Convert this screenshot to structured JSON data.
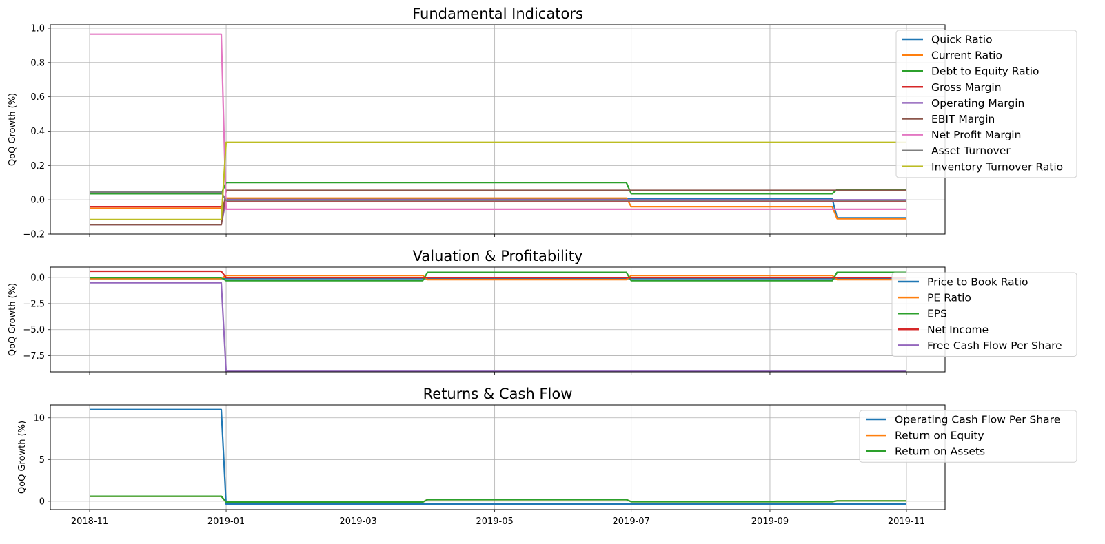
{
  "chart_data": [
    {
      "type": "line",
      "title": "Fundamental Indicators",
      "ylabel": "QoQ Growth (%)",
      "xlabel": "",
      "ylim": [
        -0.2,
        1.02
      ],
      "yticks": [
        -0.2,
        0.0,
        0.2,
        0.4,
        0.6,
        0.8,
        1.0
      ],
      "yticklabels": [
        "−0.2",
        "0.0",
        "0.2",
        "0.4",
        "0.6",
        "0.8",
        "1.0"
      ],
      "legend": "top-right",
      "series": [
        {
          "name": "Quick Ratio",
          "color": "#1f77b4",
          "values": [
            -0.05,
            0.005,
            0.005,
            0.005,
            -0.105,
            -0.105
          ]
        },
        {
          "name": "Current Ratio",
          "color": "#ff7f0e",
          "values": [
            -0.05,
            0.01,
            0.01,
            -0.04,
            -0.11,
            -0.11
          ]
        },
        {
          "name": "Debt to Equity Ratio",
          "color": "#2ca02c",
          "values": [
            0.035,
            0.1,
            0.1,
            0.035,
            0.06,
            0.06
          ]
        },
        {
          "name": "Gross Margin",
          "color": "#d62728",
          "values": [
            -0.04,
            -0.01,
            -0.01,
            -0.01,
            -0.01,
            -0.01
          ]
        },
        {
          "name": "Operating Margin",
          "color": "#9467bd",
          "values": [
            -0.145,
            0.0,
            0.0,
            0.0,
            0.0,
            0.0
          ]
        },
        {
          "name": "EBIT Margin",
          "color": "#8c564b",
          "values": [
            -0.145,
            0.055,
            0.055,
            0.055,
            0.055,
            0.055
          ]
        },
        {
          "name": "Net Profit Margin",
          "color": "#e377c2",
          "values": [
            0.965,
            -0.055,
            -0.055,
            -0.055,
            -0.055,
            -0.055
          ]
        },
        {
          "name": "Asset Turnover",
          "color": "#7f7f7f",
          "values": [
            0.045,
            -0.005,
            -0.005,
            -0.005,
            -0.005,
            -0.005
          ]
        },
        {
          "name": "Inventory Turnover Ratio",
          "color": "#bcbd22",
          "values": [
            -0.115,
            0.335,
            0.335,
            0.335,
            0.335,
            0.335
          ]
        }
      ]
    },
    {
      "type": "line",
      "title": "Valuation & Profitability",
      "ylabel": "QoQ Growth (%)",
      "xlabel": "",
      "ylim": [
        -9.05,
        1.0
      ],
      "yticks": [
        0.0,
        -2.5,
        -5.0,
        -7.5
      ],
      "yticklabels": [
        "0.0",
        "−2.5",
        "−5.0",
        "−7.5"
      ],
      "legend": "right",
      "series": [
        {
          "name": "Price to Book Ratio",
          "color": "#1f77b4",
          "values": [
            -0.1,
            -0.1,
            -0.1,
            -0.1,
            -0.1,
            -0.1
          ]
        },
        {
          "name": "PE Ratio",
          "color": "#ff7f0e",
          "values": [
            -0.1,
            0.2,
            -0.2,
            0.2,
            -0.2,
            -0.2
          ]
        },
        {
          "name": "EPS",
          "color": "#2ca02c",
          "values": [
            0.0,
            -0.3,
            0.5,
            -0.3,
            0.5,
            0.5
          ]
        },
        {
          "name": "Net Income",
          "color": "#d62728",
          "values": [
            0.6,
            0.0,
            0.0,
            0.0,
            0.0,
            0.0
          ]
        },
        {
          "name": "Free Cash Flow Per Share",
          "color": "#9467bd",
          "values": [
            -0.5,
            -9.0,
            -9.0,
            -9.0,
            -9.0,
            -9.0
          ]
        }
      ]
    },
    {
      "type": "line",
      "title": "Returns & Cash Flow",
      "ylabel": "QoQ Growth (%)",
      "xlabel": "",
      "ylim": [
        -1.0,
        11.55
      ],
      "yticks": [
        0,
        5,
        10
      ],
      "yticklabels": [
        "0",
        "5",
        "10"
      ],
      "legend": "top-right",
      "x_tick_labels": [
        "2018-11",
        "2019-01",
        "2019-03",
        "2019-05",
        "2019-07",
        "2019-09",
        "2019-11"
      ],
      "series": [
        {
          "name": "Operating Cash Flow Per Share",
          "color": "#1f77b4",
          "values": [
            11.0,
            -0.35,
            -0.35,
            -0.35,
            -0.35,
            -0.35
          ]
        },
        {
          "name": "Return on Equity",
          "color": "#ff7f0e",
          "values": [
            0.6,
            -0.1,
            0.2,
            -0.05,
            0.05,
            0.05
          ]
        },
        {
          "name": "Return on Assets",
          "color": "#2ca02c",
          "values": [
            0.6,
            -0.1,
            0.2,
            -0.05,
            0.05,
            0.05
          ]
        }
      ]
    }
  ],
  "x_dates": [
    "2018-11-01",
    "2019-01-01",
    "2019-04-01",
    "2019-07-01",
    "2019-10-01",
    "2019-11-01"
  ]
}
